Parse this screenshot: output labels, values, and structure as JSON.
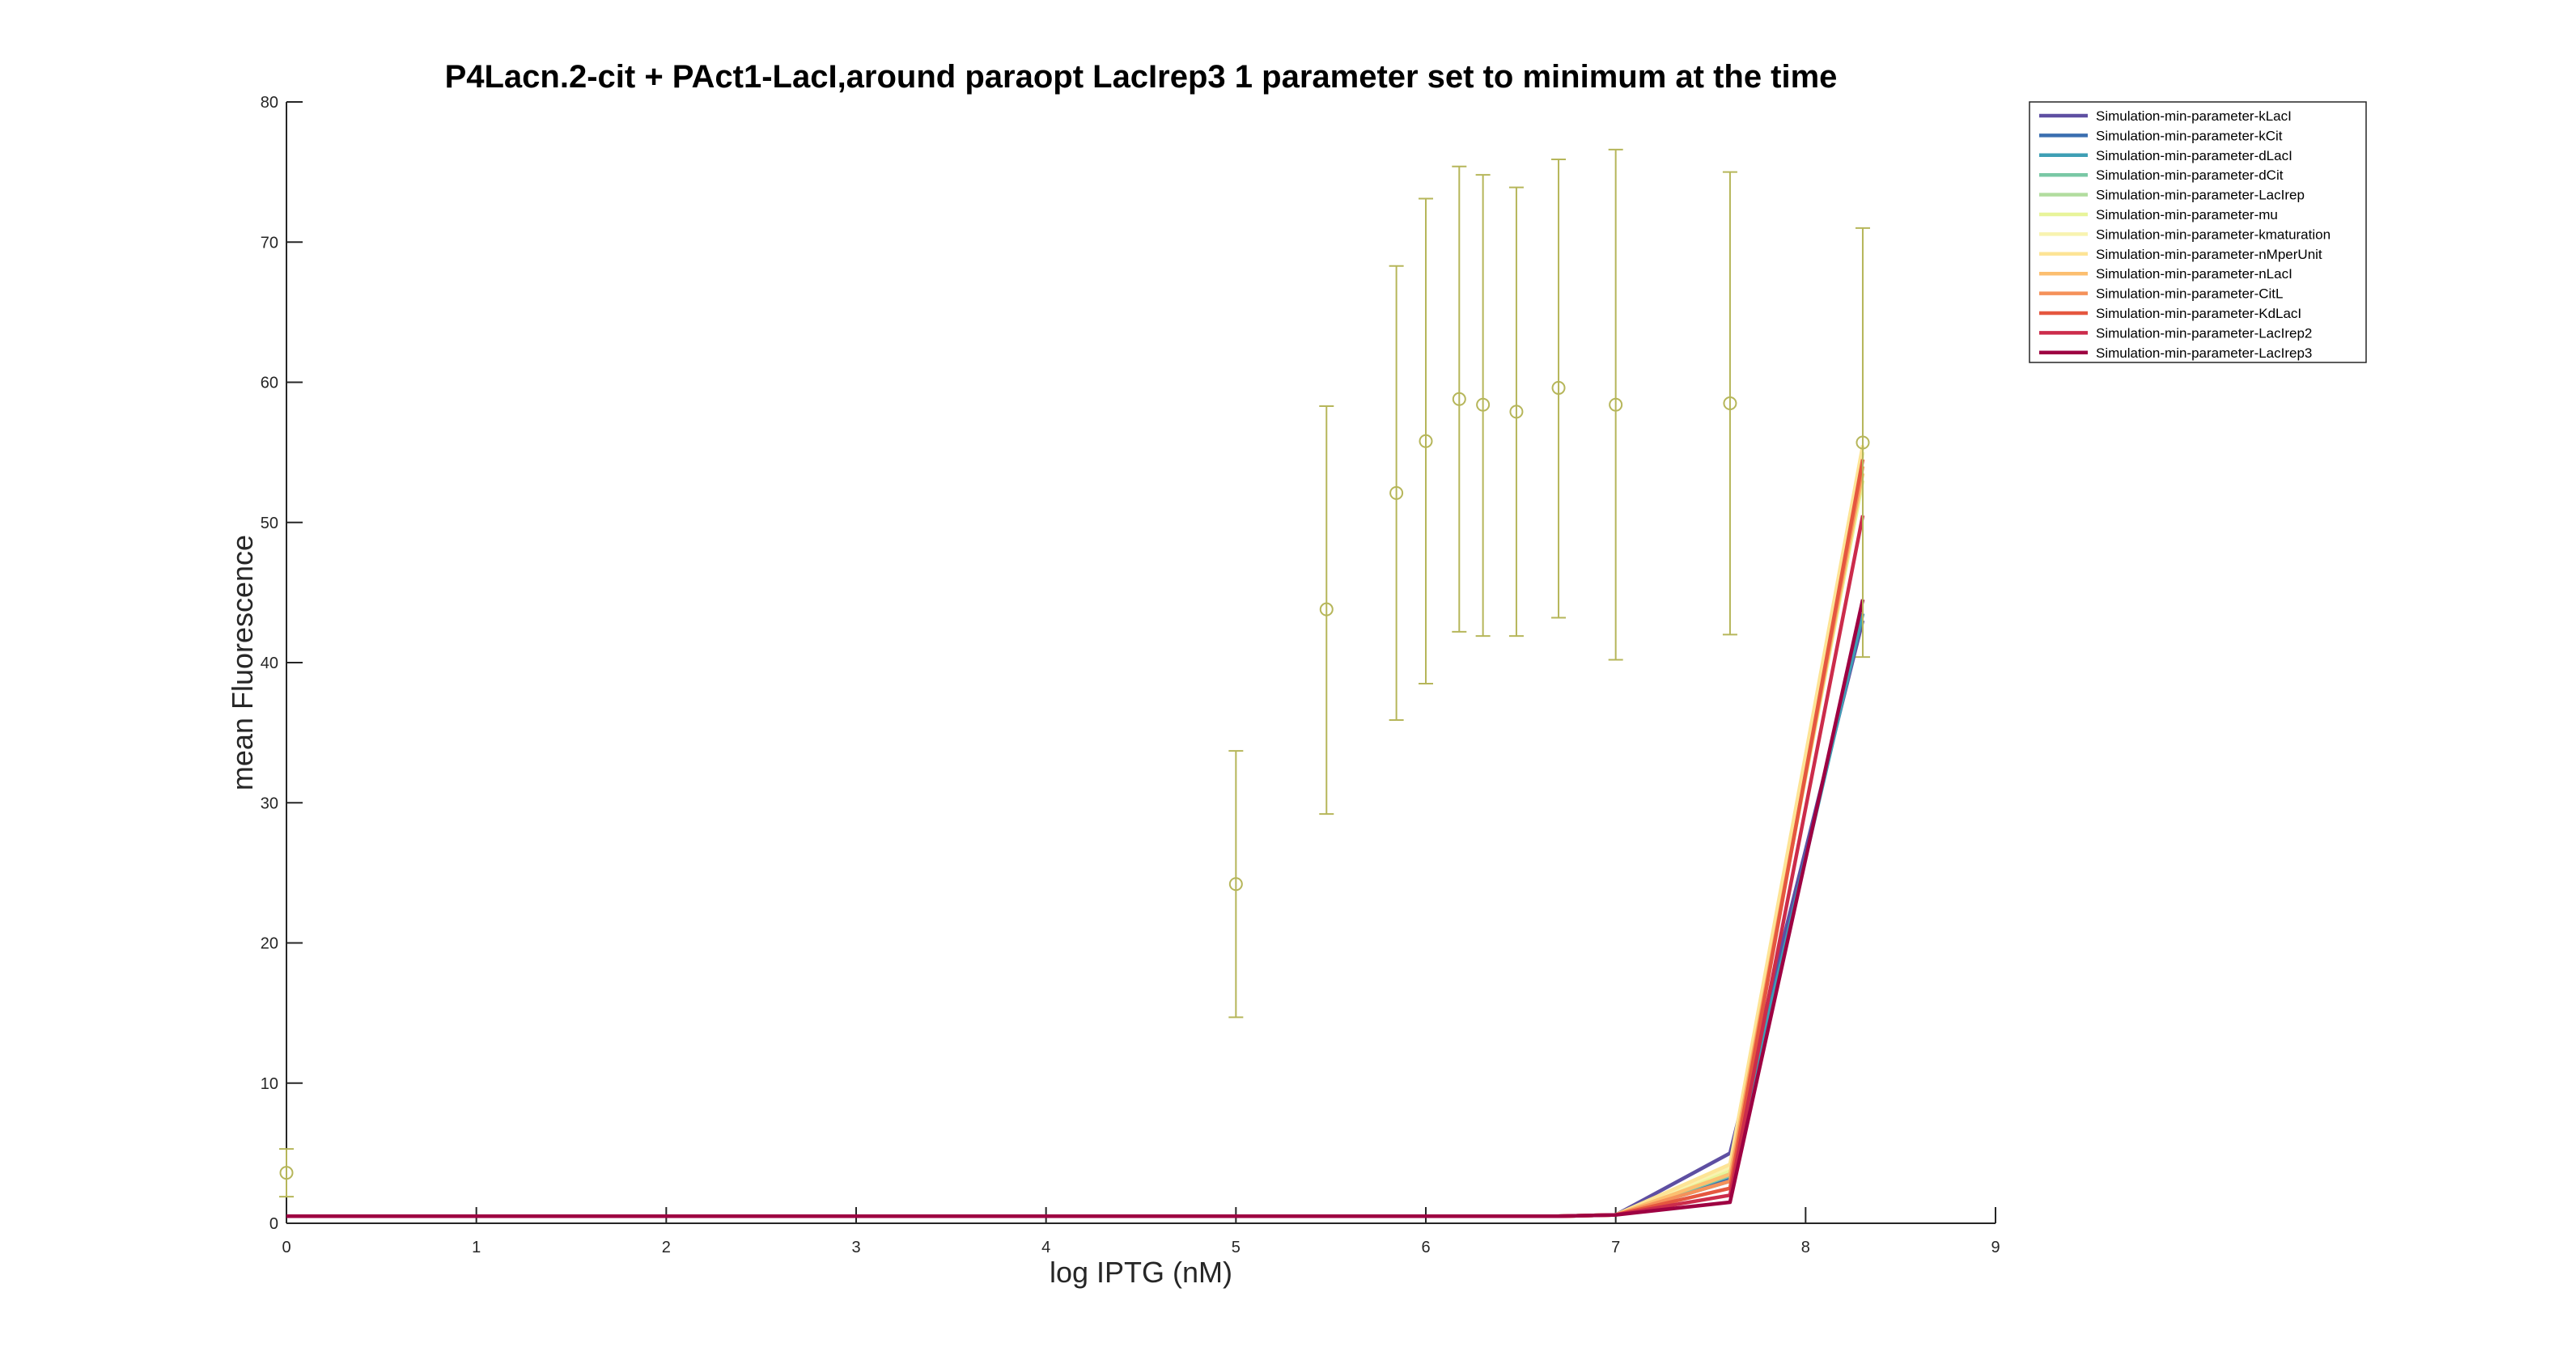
{
  "chart_data": {
    "type": "line",
    "title": "P4Lacn.2-cit + PAct1-LacI,around paraopt LacIrep3 1 parameter set to minimum at the time",
    "xlabel": "log IPTG (nM)",
    "ylabel": "mean Fluorescence",
    "xlim": [
      0,
      9
    ],
    "ylim": [
      0,
      80
    ],
    "xticks": [
      0,
      1,
      2,
      3,
      4,
      5,
      6,
      7,
      8,
      9
    ],
    "yticks": [
      0,
      10,
      20,
      30,
      40,
      50,
      60,
      70,
      80
    ],
    "grid": false,
    "legend_position": "top-right",
    "x": [
      0,
      5,
      5.477,
      5.845,
      6,
      6.176,
      6.301,
      6.477,
      6.699,
      7,
      7.602,
      8.301
    ],
    "series": [
      {
        "name": "Simulation-min-parameter-kLacI",
        "color": "#5e4fa2",
        "values": [
          0.5,
          0.5,
          0.5,
          0.5,
          0.5,
          0.5,
          0.5,
          0.5,
          0.5,
          0.6,
          5.0,
          43.0
        ]
      },
      {
        "name": "Simulation-min-parameter-kCit",
        "color": "#3b6fb0",
        "values": [
          0.5,
          0.5,
          0.5,
          0.5,
          0.5,
          0.5,
          0.5,
          0.5,
          0.5,
          0.6,
          3.2,
          43.5
        ]
      },
      {
        "name": "Simulation-min-parameter-dLacI",
        "color": "#3e9fb5",
        "values": [
          0.5,
          0.5,
          0.5,
          0.5,
          0.5,
          0.5,
          0.5,
          0.5,
          0.5,
          0.6,
          3.0,
          43.5
        ]
      },
      {
        "name": "Simulation-min-parameter-dCit",
        "color": "#79c8a5",
        "values": [
          0.5,
          0.5,
          0.5,
          0.5,
          0.5,
          0.5,
          0.5,
          0.5,
          0.5,
          0.6,
          3.4,
          55.0
        ]
      },
      {
        "name": "Simulation-min-parameter-LacIrep",
        "color": "#b2dd9f",
        "values": [
          0.5,
          0.5,
          0.5,
          0.5,
          0.5,
          0.5,
          0.5,
          0.5,
          0.5,
          0.6,
          3.6,
          55.0
        ]
      },
      {
        "name": "Simulation-min-parameter-mu",
        "color": "#e8f49a",
        "values": [
          0.5,
          0.5,
          0.5,
          0.5,
          0.5,
          0.5,
          0.5,
          0.5,
          0.5,
          0.6,
          3.8,
          53.0
        ]
      },
      {
        "name": "Simulation-min-parameter-kmaturation",
        "color": "#f8f3b0",
        "values": [
          0.5,
          0.5,
          0.5,
          0.5,
          0.5,
          0.5,
          0.5,
          0.5,
          0.5,
          0.6,
          4.0,
          55.0
        ]
      },
      {
        "name": "Simulation-min-parameter-nMperUnit",
        "color": "#fde496",
        "values": [
          0.5,
          0.5,
          0.5,
          0.5,
          0.5,
          0.5,
          0.5,
          0.5,
          0.5,
          0.6,
          4.2,
          55.5
        ]
      },
      {
        "name": "Simulation-min-parameter-nLacI",
        "color": "#fcbf70",
        "values": [
          0.5,
          0.5,
          0.5,
          0.5,
          0.5,
          0.5,
          0.5,
          0.5,
          0.5,
          0.6,
          3.5,
          53.5
        ]
      },
      {
        "name": "Simulation-min-parameter-CitL",
        "color": "#f5915a",
        "values": [
          0.5,
          0.5,
          0.5,
          0.5,
          0.5,
          0.5,
          0.5,
          0.5,
          0.5,
          0.6,
          3.0,
          54.0
        ]
      },
      {
        "name": "Simulation-min-parameter-KdLacI",
        "color": "#e5573f",
        "values": [
          0.5,
          0.5,
          0.5,
          0.5,
          0.5,
          0.5,
          0.5,
          0.5,
          0.5,
          0.6,
          2.5,
          54.5
        ]
      },
      {
        "name": "Simulation-min-parameter-LacIrep2",
        "color": "#cc2c4b",
        "values": [
          0.5,
          0.5,
          0.5,
          0.5,
          0.5,
          0.5,
          0.5,
          0.5,
          0.5,
          0.6,
          2.0,
          50.5
        ]
      },
      {
        "name": "Simulation-min-parameter-LacIrep3",
        "color": "#9e0142",
        "values": [
          0.5,
          0.5,
          0.5,
          0.5,
          0.5,
          0.5,
          0.5,
          0.5,
          0.5,
          0.6,
          1.5,
          44.5
        ]
      }
    ],
    "measurements": {
      "color": "#b6b65a",
      "points": [
        {
          "x": 0,
          "y": 3.6,
          "low": 1.9,
          "high": 5.3
        },
        {
          "x": 5,
          "y": 24.2,
          "low": 14.7,
          "high": 33.7
        },
        {
          "x": 5.477,
          "y": 43.8,
          "low": 29.2,
          "high": 58.3
        },
        {
          "x": 5.845,
          "y": 52.1,
          "low": 35.9,
          "high": 68.3
        },
        {
          "x": 6,
          "y": 55.8,
          "low": 38.5,
          "high": 73.1
        },
        {
          "x": 6.176,
          "y": 58.8,
          "low": 42.2,
          "high": 75.4
        },
        {
          "x": 6.301,
          "y": 58.4,
          "low": 41.9,
          "high": 74.8
        },
        {
          "x": 6.477,
          "y": 57.9,
          "low": 41.9,
          "high": 73.9
        },
        {
          "x": 6.699,
          "y": 59.6,
          "low": 43.2,
          "high": 75.9
        },
        {
          "x": 7,
          "y": 58.4,
          "low": 40.2,
          "high": 76.6
        },
        {
          "x": 7.602,
          "y": 58.5,
          "low": 42.0,
          "high": 75.0
        },
        {
          "x": 8.301,
          "y": 55.7,
          "low": 40.4,
          "high": 71.0
        }
      ]
    }
  }
}
